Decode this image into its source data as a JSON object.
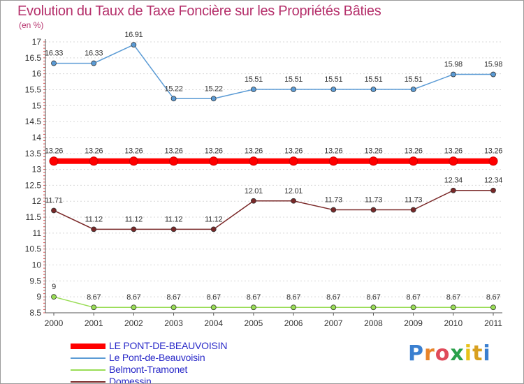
{
  "title": "Evolution du Taux de Taxe Foncière sur les Propriétés Bâties",
  "unit": "(en %)",
  "brand": {
    "letters": [
      "P",
      "r",
      "o",
      "x",
      "i",
      "t",
      "i"
    ],
    "colors": [
      "#3a7fd0",
      "#e8842a",
      "#e04a5a",
      "#2aa04a",
      "#e8c21a",
      "#d8a020",
      "#3a7fd0"
    ]
  },
  "chart_data": {
    "type": "line",
    "title": "Evolution du Taux de Taxe Foncière sur les Propriétés Bâties",
    "ylabel": "(en %)",
    "xlabel": "",
    "ylim": [
      8.5,
      17
    ],
    "yticks": [
      "8.5",
      "9",
      "9.5",
      "10",
      "10.5",
      "11",
      "11.5",
      "12",
      "12.5",
      "13",
      "13.5",
      "14",
      "14.5",
      "15",
      "15.5",
      "16",
      "16.5",
      "17"
    ],
    "categories": [
      "2000",
      "2001",
      "2002",
      "2003",
      "2004",
      "2005",
      "2006",
      "2007",
      "2008",
      "2009",
      "2010",
      "2011"
    ],
    "series": [
      {
        "name": "Le Pont-de-Beauvoisin",
        "color": "#5b9bd5",
        "values": [
          16.33,
          16.33,
          16.91,
          15.22,
          15.22,
          15.51,
          15.51,
          15.51,
          15.51,
          15.51,
          15.98,
          15.98
        ],
        "labels": [
          "16.33",
          "16.33",
          "16.91",
          "15.22",
          "15.22",
          "15.51",
          "15.51",
          "15.51",
          "15.51",
          "15.51",
          "15.98",
          "15.98"
        ]
      },
      {
        "name": "LE PONT-DE-BEAUVOISIN",
        "color": "#ff0000",
        "values": [
          13.26,
          13.26,
          13.26,
          13.26,
          13.26,
          13.26,
          13.26,
          13.26,
          13.26,
          13.26,
          13.26,
          13.26
        ],
        "labels": [
          "13.26",
          "13.26",
          "13.26",
          "13.26",
          "13.26",
          "13.26",
          "13.26",
          "13.26",
          "13.26",
          "13.26",
          "13.26",
          "13.26"
        ]
      },
      {
        "name": "Domessin",
        "color": "#7a2828",
        "values": [
          11.71,
          11.12,
          11.12,
          11.12,
          11.12,
          12.01,
          12.01,
          11.73,
          11.73,
          11.73,
          12.34,
          12.34
        ],
        "labels": [
          "11.71",
          "11.12",
          "11.12",
          "11.12",
          "11.12",
          "12.01",
          "12.01",
          "11.73",
          "11.73",
          "11.73",
          "12.34",
          "12.34"
        ]
      },
      {
        "name": "Belmont-Tramonet",
        "color": "#99dd55",
        "values": [
          9,
          8.67,
          8.67,
          8.67,
          8.67,
          8.67,
          8.67,
          8.67,
          8.67,
          8.67,
          8.67,
          8.67
        ],
        "labels": [
          "9",
          "8.67",
          "8.67",
          "8.67",
          "8.67",
          "8.67",
          "8.67",
          "8.67",
          "8.67",
          "8.67",
          "8.67",
          "8.67"
        ]
      }
    ],
    "legend": [
      {
        "name": "LE PONT-DE-BEAUVOISIN",
        "color": "#ff0000"
      },
      {
        "name": "Le Pont-de-Beauvoisin",
        "color": "#5b9bd5"
      },
      {
        "name": "Belmont-Tramonet",
        "color": "#99dd55"
      },
      {
        "name": "Domessin",
        "color": "#7a2828"
      }
    ]
  }
}
